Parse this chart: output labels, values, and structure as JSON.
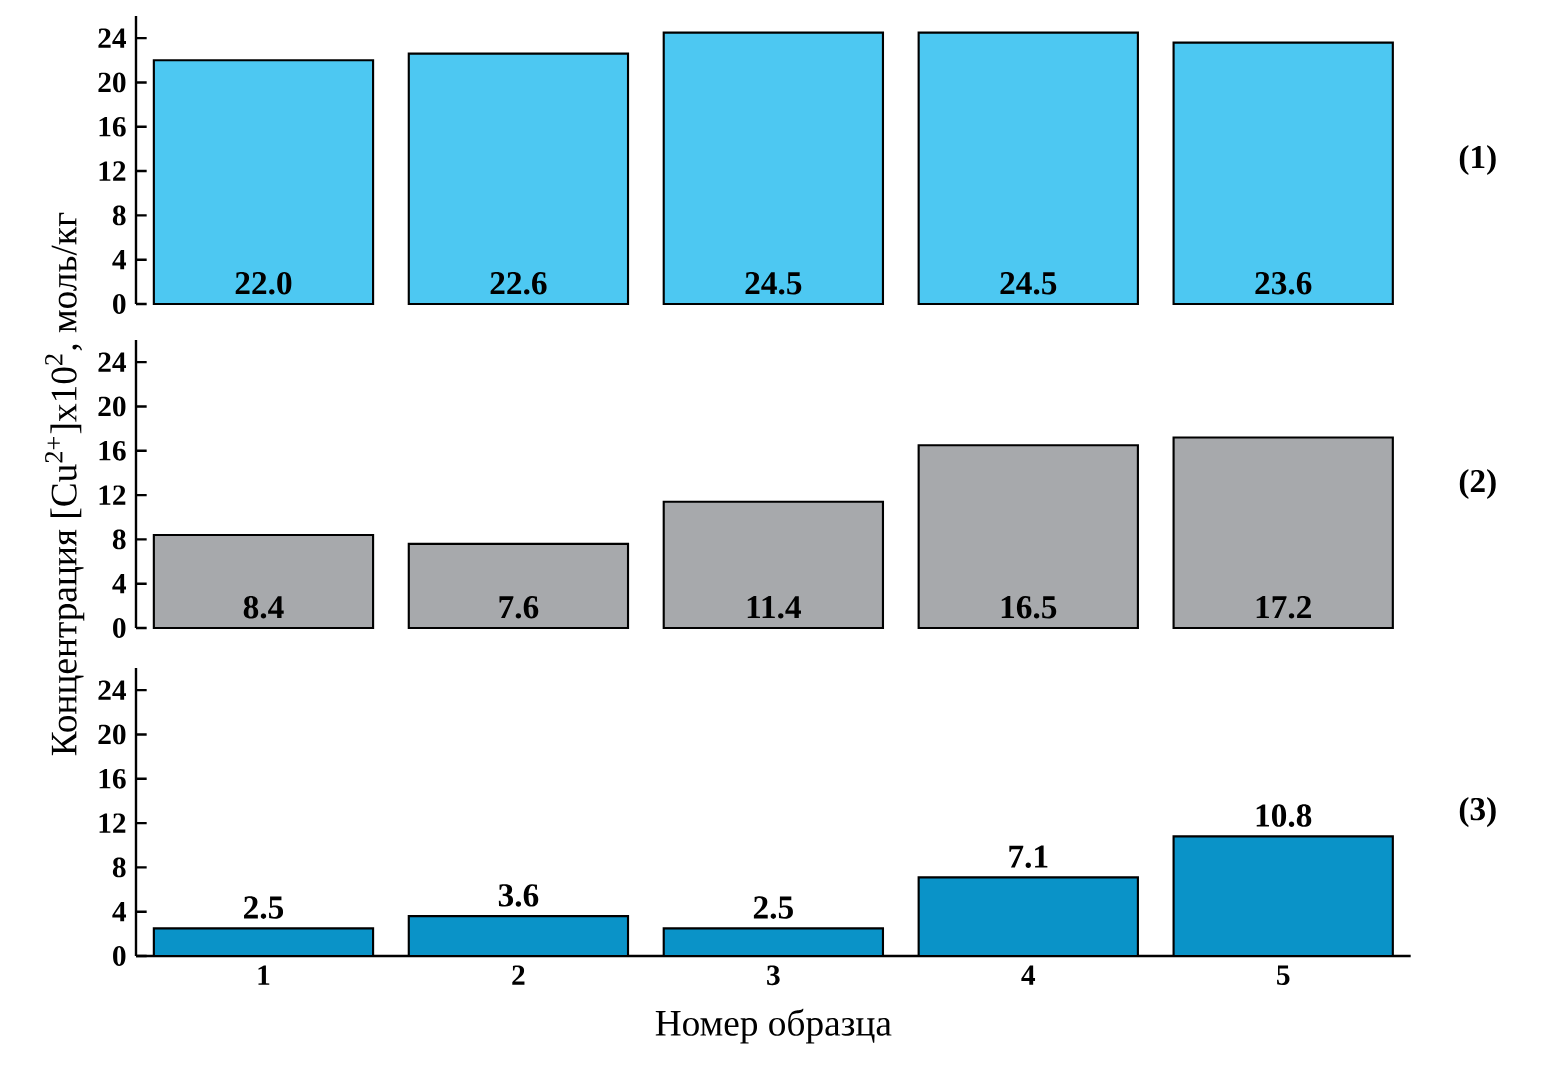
{
  "chart_data": [
    {
      "type": "bar",
      "categories": [
        "1",
        "2",
        "3",
        "4",
        "5"
      ],
      "values": [
        22.0,
        22.6,
        24.5,
        24.5,
        23.6
      ],
      "value_labels": [
        "22.0",
        "22.6",
        "24.5",
        "24.5",
        "23.6"
      ],
      "color": "#4dc8f2",
      "ylim": [
        0,
        26
      ],
      "yticks": [
        0,
        4,
        8,
        12,
        16,
        20,
        24
      ],
      "tick_labels": "y",
      "annotations": [
        "(1)"
      ]
    },
    {
      "type": "bar",
      "categories": [
        "1",
        "2",
        "3",
        "4",
        "5"
      ],
      "values": [
        8.4,
        7.6,
        11.4,
        16.5,
        17.2
      ],
      "value_labels": [
        "8.4",
        "7.6",
        "11.4",
        "16.5",
        "17.2"
      ],
      "color": "#a7a9ac",
      "ylim": [
        0,
        26
      ],
      "yticks": [
        0,
        4,
        8,
        12,
        16,
        20,
        24
      ],
      "tick_labels": "y",
      "ylabel": "Концентрация [Cu$^{2+}$]x10$^{2}$, моль/кг",
      "annotations": [
        "(2)"
      ]
    },
    {
      "type": "bar",
      "categories": [
        "1",
        "2",
        "3",
        "4",
        "5"
      ],
      "values": [
        2.5,
        3.6,
        2.5,
        7.1,
        10.8
      ],
      "value_labels": [
        "2.5",
        "3.6",
        "2.5",
        "7.1",
        "10.8"
      ],
      "color": "#0a93c8",
      "ylim": [
        0,
        26
      ],
      "yticks": [
        0,
        4,
        8,
        12,
        16,
        20,
        24
      ],
      "xlabel": "Номер образца",
      "annotations": [
        "(3)"
      ]
    }
  ]
}
